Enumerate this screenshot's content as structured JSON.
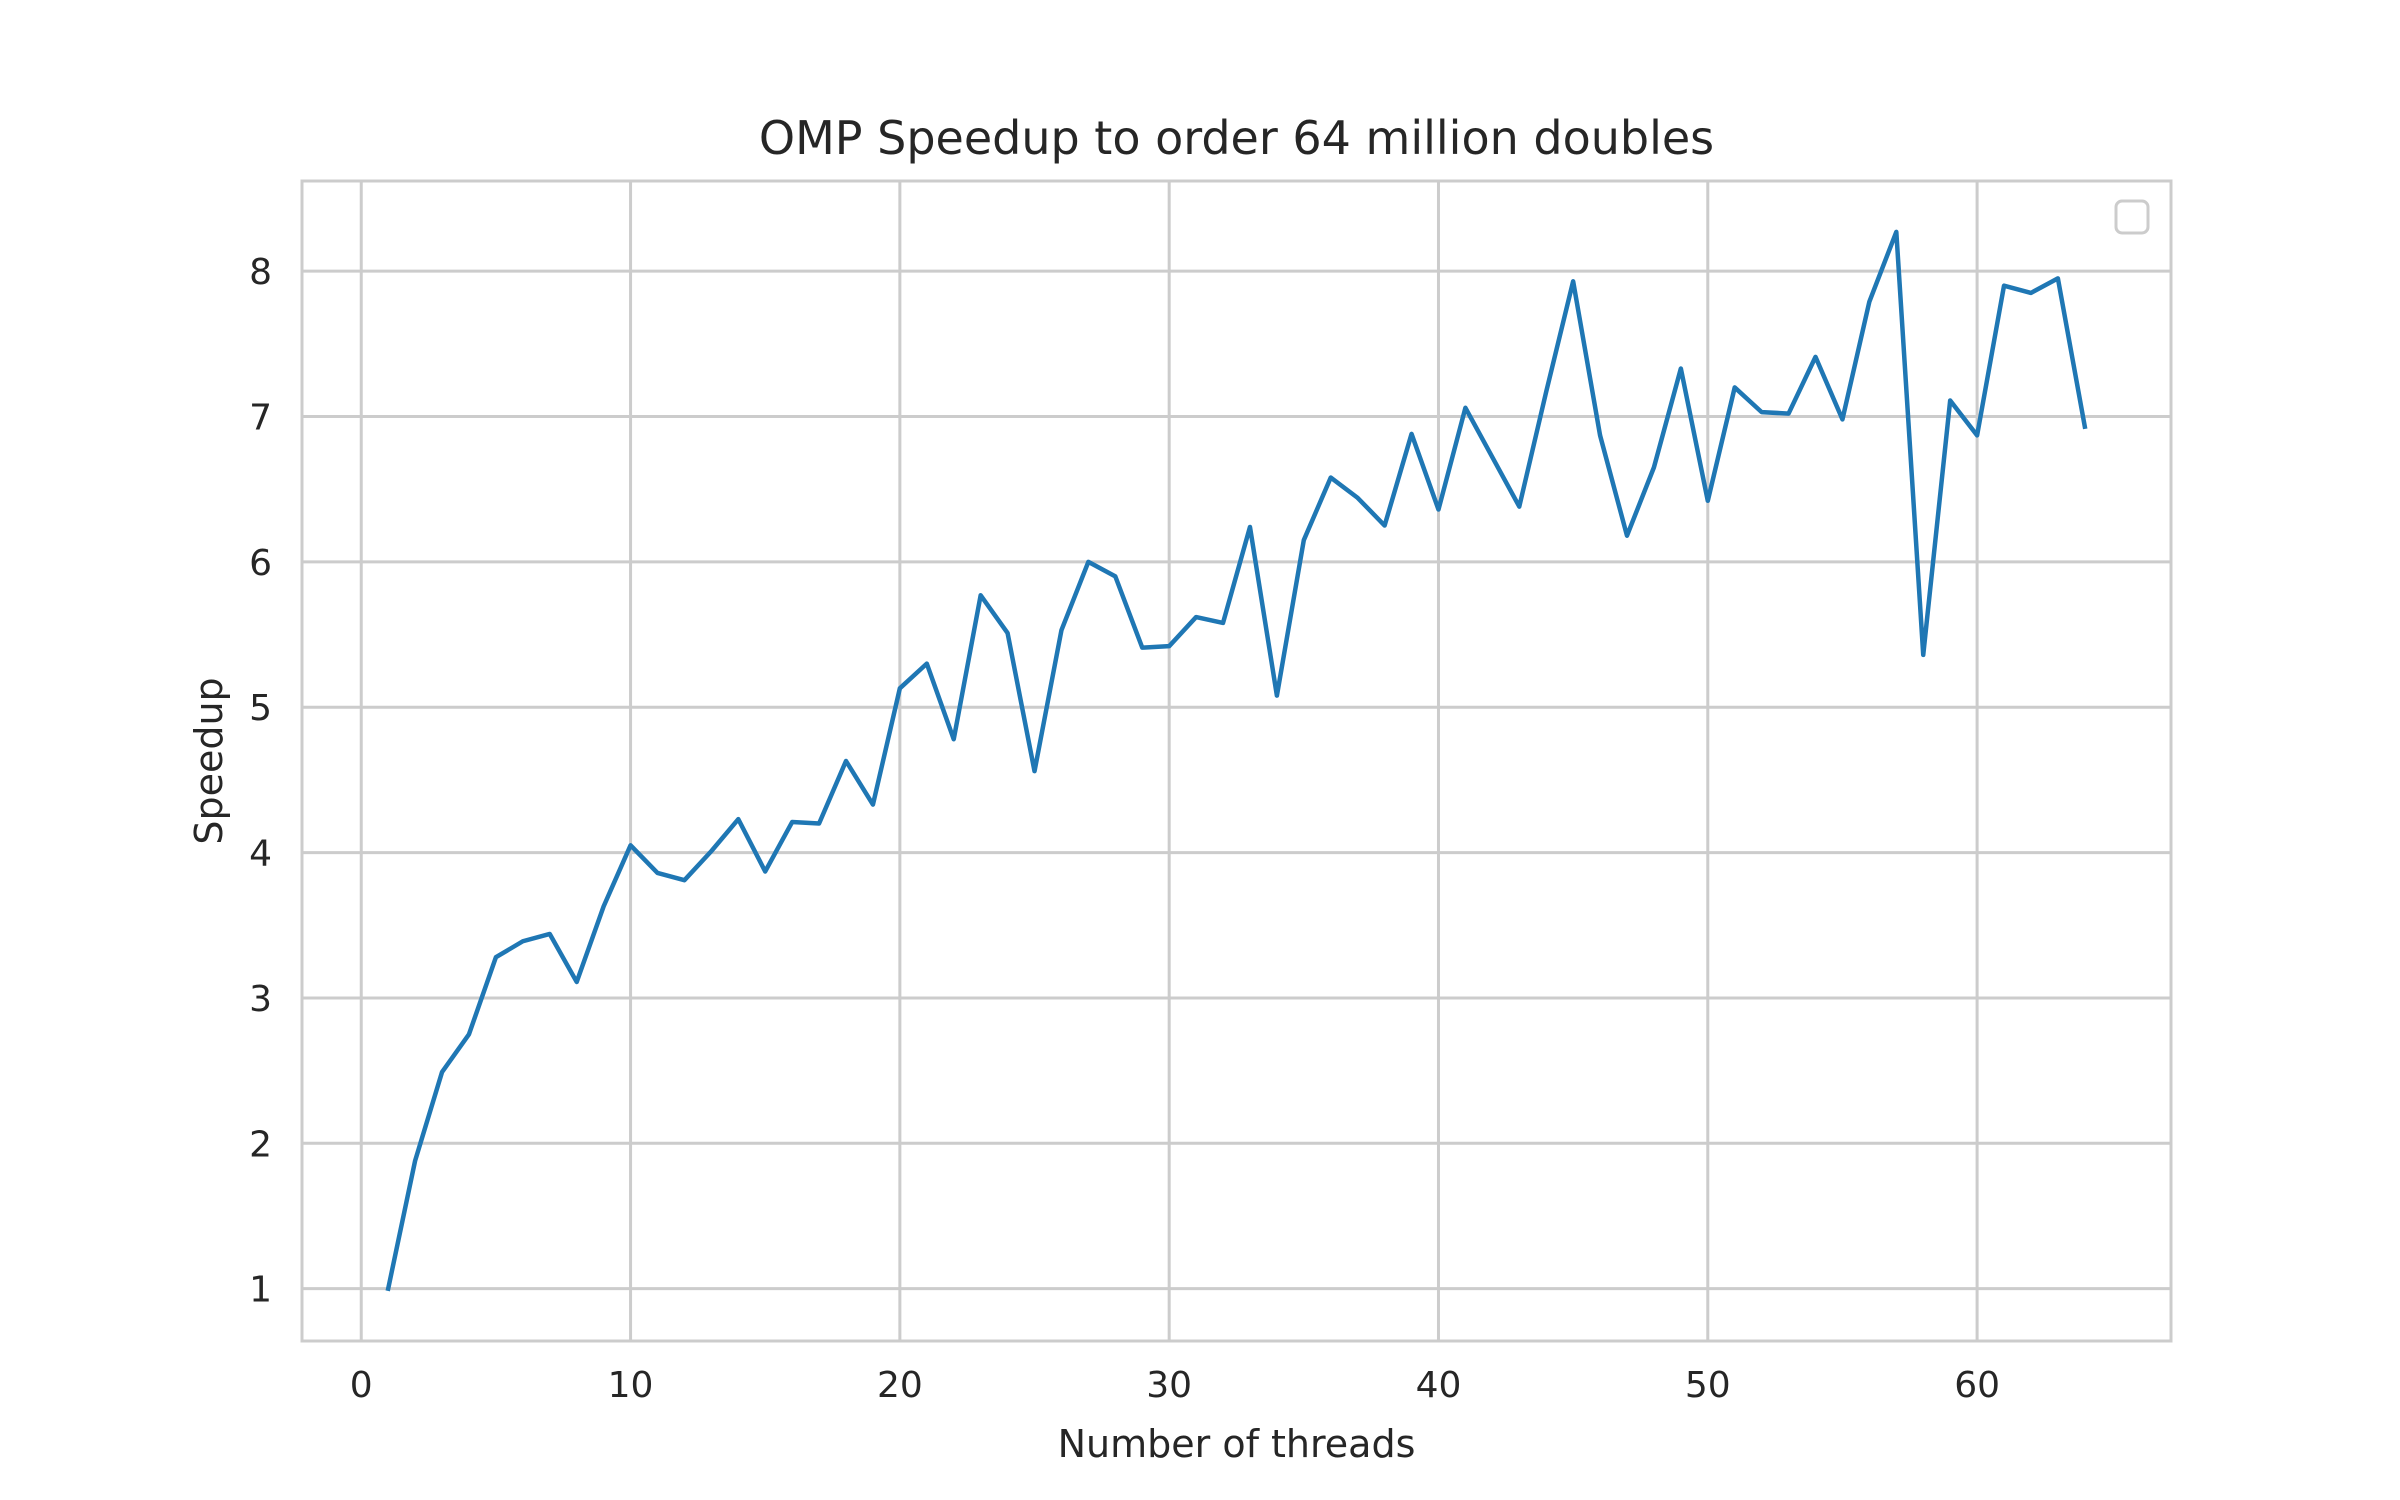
{
  "chart_data": {
    "type": "line",
    "title": "OMP Speedup to order 64 million doubles",
    "xlabel": "Number of threads",
    "ylabel": "Speedup",
    "xlim": [
      -2.2,
      67.2
    ],
    "ylim": [
      0.64,
      8.62
    ],
    "xticks": [
      0,
      10,
      20,
      30,
      40,
      50,
      60
    ],
    "yticks": [
      1,
      2,
      3,
      4,
      5,
      6,
      7,
      8
    ],
    "grid": true,
    "legend": {
      "placement": "top-right",
      "entries": []
    },
    "series": [
      {
        "color": "#1f77b4",
        "x": [
          1,
          2,
          3,
          4,
          5,
          6,
          7,
          8,
          9,
          10,
          11,
          12,
          13,
          14,
          15,
          16,
          17,
          18,
          19,
          20,
          21,
          22,
          23,
          24,
          25,
          26,
          27,
          28,
          29,
          30,
          31,
          32,
          33,
          34,
          35,
          36,
          37,
          38,
          39,
          40,
          41,
          42,
          43,
          44,
          45,
          46,
          47,
          48,
          49,
          50,
          51,
          52,
          53,
          54,
          55,
          56,
          57,
          58,
          59,
          60,
          61,
          62,
          63,
          64
        ],
        "values": [
          1.0,
          1.88,
          2.49,
          2.75,
          3.28,
          3.39,
          3.44,
          3.11,
          3.63,
          4.05,
          3.86,
          3.81,
          4.01,
          4.23,
          3.87,
          4.21,
          4.2,
          4.63,
          4.33,
          5.13,
          5.3,
          4.78,
          5.77,
          5.51,
          4.56,
          5.53,
          6.0,
          5.9,
          5.41,
          5.42,
          5.62,
          5.58,
          6.24,
          5.08,
          6.15,
          6.58,
          6.44,
          6.25,
          6.88,
          6.36,
          7.06,
          6.72,
          6.38,
          7.17,
          7.93,
          6.87,
          6.18,
          6.65,
          7.33,
          6.42,
          7.2,
          7.03,
          7.02,
          7.41,
          6.98,
          7.79,
          8.27,
          5.36,
          7.11,
          6.87,
          7.9,
          7.85,
          7.95,
          6.93
        ]
      }
    ]
  }
}
